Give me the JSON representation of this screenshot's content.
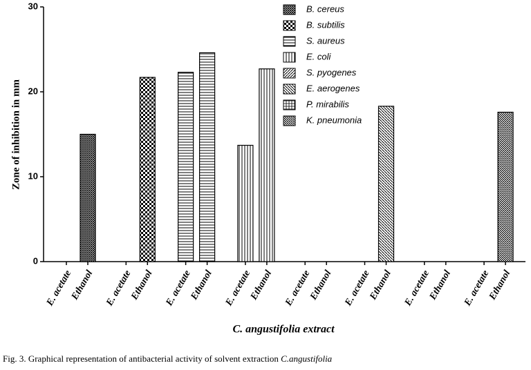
{
  "chart_data": {
    "type": "bar",
    "y_label": "Zone of inhibition in mm",
    "x_label": "C. angustifolia extract",
    "caption": "Fig. 3. Graphical representation of antibacterial activity of solvent extraction ",
    "caption_species": "C.angustifolia",
    "categories": [
      "E. acetate",
      "Ethanol",
      "E. acetate",
      "Ethanol",
      "E. acetate",
      "Ethanol",
      "E. acetate",
      "Ethanol",
      "E. acetate",
      "Ethanol",
      "E. acetate",
      "Ethanol",
      "E. acetate",
      "Ethanol",
      "E. acetate",
      "Ethanol"
    ],
    "ylim": [
      0,
      30
    ],
    "yticks": [
      0,
      10,
      20,
      30
    ],
    "legend": "top-right",
    "series": [
      {
        "name": "B. cereus",
        "color": "#000",
        "pattern": "fine-crosshatch",
        "values": [
          0,
          15,
          null,
          null,
          null,
          null,
          null,
          null,
          null,
          null,
          null,
          null,
          null,
          null,
          null,
          null
        ]
      },
      {
        "name": "B. subtilis",
        "color": "#000",
        "pattern": "checker",
        "values": [
          null,
          null,
          0,
          21.7,
          null,
          null,
          null,
          null,
          null,
          null,
          null,
          null,
          null,
          null,
          null,
          null
        ]
      },
      {
        "name": "S. aureus",
        "color": "#000",
        "pattern": "horizontal",
        "values": [
          null,
          null,
          null,
          null,
          22.3,
          24.6,
          null,
          null,
          null,
          null,
          null,
          null,
          null,
          null,
          null,
          null
        ]
      },
      {
        "name": "E. coli",
        "color": "#000",
        "pattern": "vertical",
        "values": [
          null,
          null,
          null,
          null,
          null,
          null,
          13.7,
          22.7,
          null,
          null,
          null,
          null,
          null,
          null,
          null,
          null
        ]
      },
      {
        "name": "S. pyogenes",
        "color": "#000",
        "pattern": "diagonal",
        "values": [
          null,
          null,
          null,
          null,
          null,
          null,
          null,
          null,
          0,
          0,
          null,
          null,
          null,
          null,
          null,
          null
        ]
      },
      {
        "name": "E. aerogenes",
        "color": "#000",
        "pattern": "diagonal-reverse",
        "values": [
          null,
          null,
          null,
          null,
          null,
          null,
          null,
          null,
          null,
          null,
          0,
          18.3,
          null,
          null,
          null,
          null
        ]
      },
      {
        "name": "P. mirabilis",
        "color": "#000",
        "pattern": "grid",
        "values": [
          null,
          null,
          null,
          null,
          null,
          null,
          null,
          null,
          null,
          null,
          null,
          null,
          0,
          0,
          null,
          null
        ]
      },
      {
        "name": "K. pneumonia",
        "color": "#000",
        "pattern": "diagonal-dense",
        "values": [
          null,
          null,
          null,
          null,
          null,
          null,
          null,
          null,
          null,
          null,
          null,
          null,
          null,
          null,
          0,
          17.6
        ]
      }
    ]
  }
}
